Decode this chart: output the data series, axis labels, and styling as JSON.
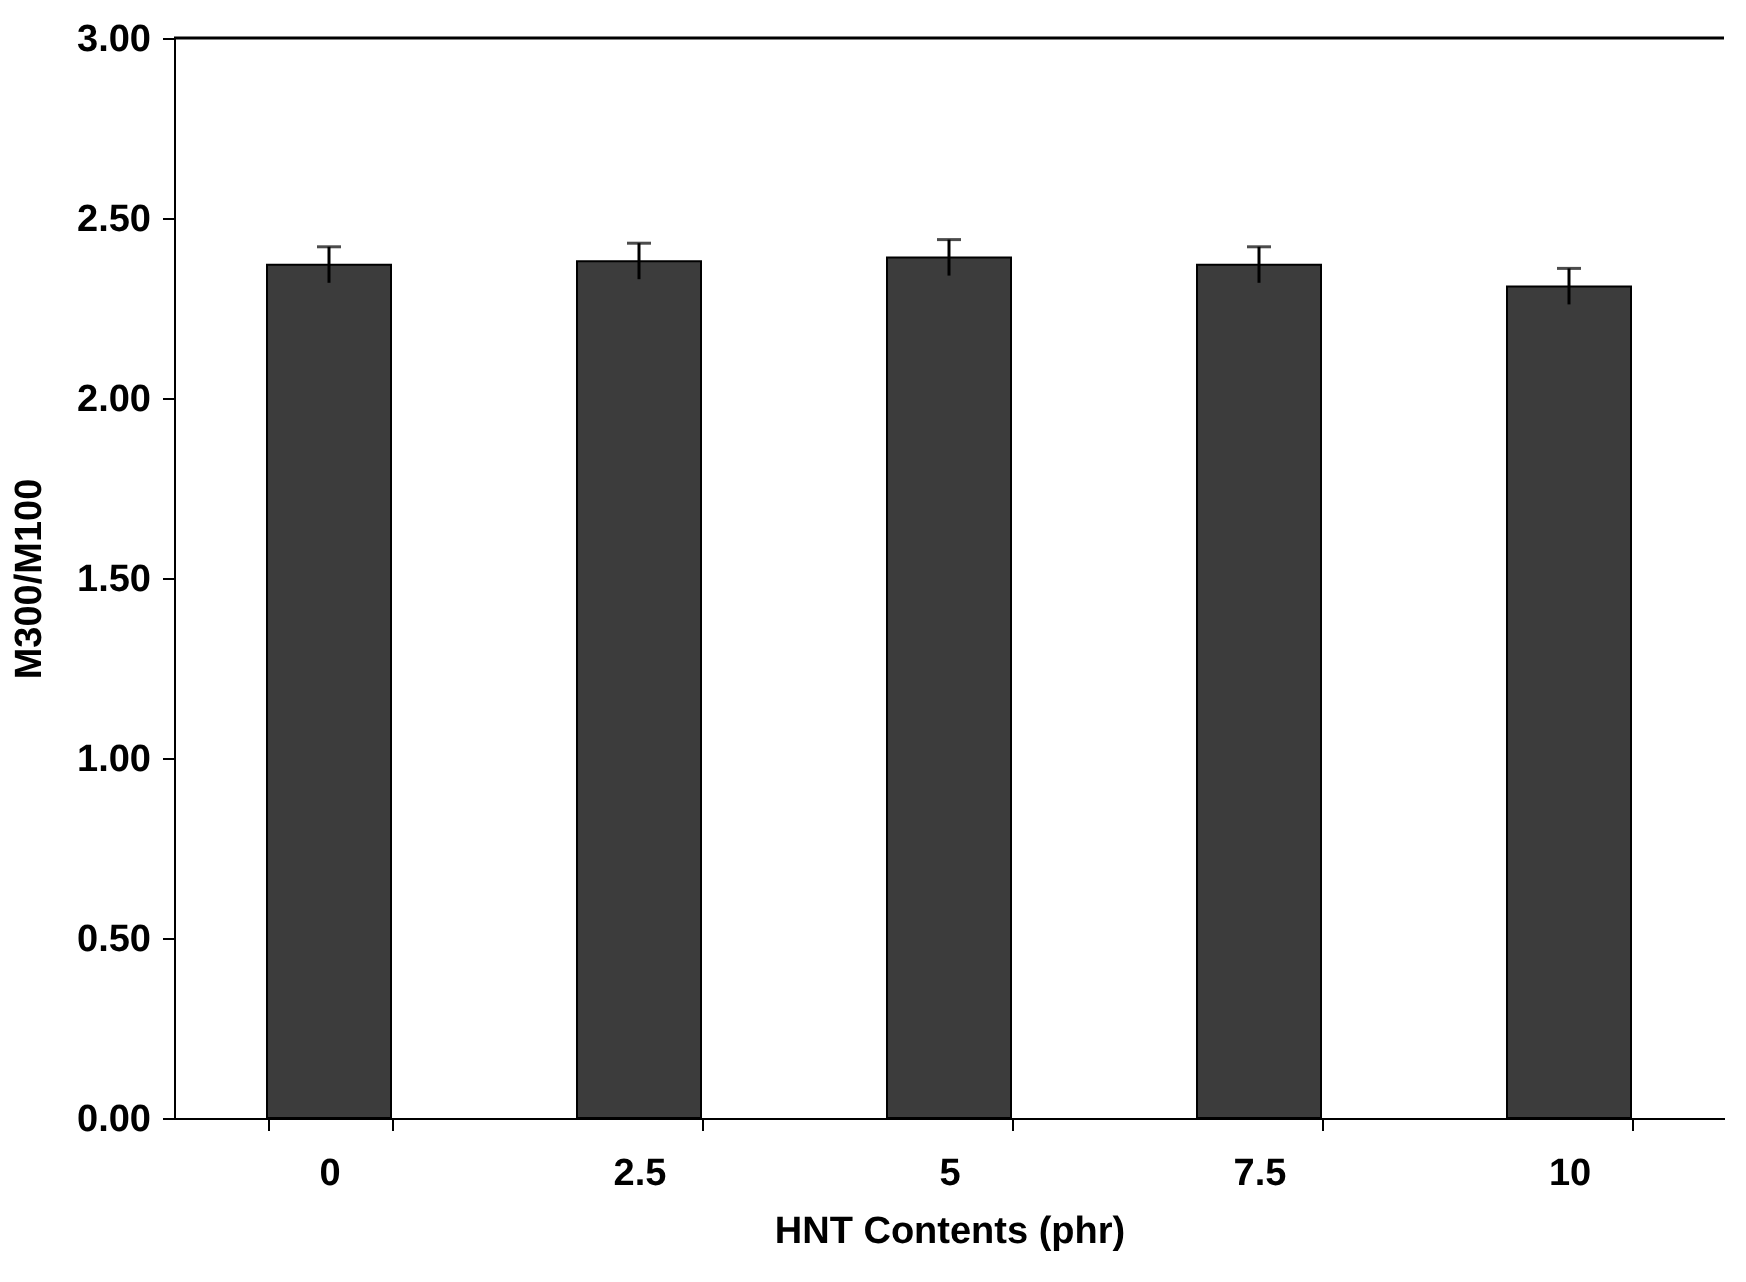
{
  "chart_data": {
    "type": "bar",
    "xlabel": "HNT Contents (phr)",
    "ylabel": "M300/M100",
    "categories": [
      "0",
      "2.5",
      "5",
      "7.5",
      "10"
    ],
    "values": [
      2.37,
      2.38,
      2.39,
      2.37,
      2.31
    ],
    "errors": [
      0.05,
      0.05,
      0.05,
      0.05,
      0.05
    ],
    "color": "#3c3c3c",
    "ylim": [
      0,
      3.0
    ],
    "yticks": [
      {
        "value": 0,
        "label": "0.00"
      },
      {
        "value": 0.5,
        "label": "0.50"
      },
      {
        "value": 1.0,
        "label": "1.00"
      },
      {
        "value": 1.5,
        "label": "1.50"
      },
      {
        "value": 2.0,
        "label": "2.00"
      },
      {
        "value": 2.5,
        "label": "2.50"
      },
      {
        "value": 3.0,
        "label": "3.00"
      }
    ],
    "grid": false
  }
}
